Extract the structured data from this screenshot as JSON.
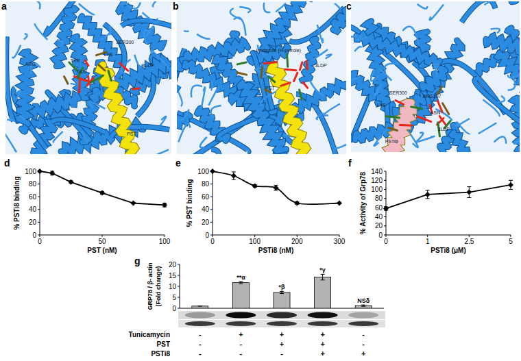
{
  "structures": [
    {
      "panel": "a",
      "labels": [
        "SER300",
        "LYS",
        "TYR",
        "GLU",
        "ARG",
        "3LDP",
        "PST"
      ]
    },
    {
      "panel": "b",
      "labels": [
        "Imidazole (H-pyrrole)",
        "PST",
        "3LDP"
      ]
    },
    {
      "panel": "c",
      "labels": [
        "SER300",
        "ARG307",
        "LYS",
        "ASN",
        "3LDP",
        "PSTi8"
      ]
    }
  ],
  "chart_data": [
    {
      "type": "line",
      "title": "d",
      "x": [
        0,
        10,
        25,
        50,
        75,
        100
      ],
      "values": [
        100,
        97,
        83,
        66,
        50,
        47
      ],
      "errors": [
        0,
        3,
        2,
        2,
        1,
        3
      ],
      "color": "#000000",
      "marker": "diamond",
      "line_style": "solid",
      "xlabel": "PST (nM)",
      "ylabel": "% PSTi8 binding",
      "xlim": [
        0,
        100
      ],
      "xticks": [
        0,
        50,
        100
      ],
      "ylim": [
        0,
        100
      ],
      "yticks": [
        0,
        20,
        40,
        60,
        80,
        100
      ]
    },
    {
      "type": "line",
      "title": "e",
      "x": [
        0,
        50,
        100,
        150,
        200,
        300
      ],
      "values": [
        100,
        93,
        77,
        74,
        50,
        50
      ],
      "errors": [
        0,
        6,
        2,
        4,
        2,
        1
      ],
      "color": "#000000",
      "marker": "diamond",
      "line_style": "smooth",
      "xlabel": "PSTi8 (nM)",
      "ylabel": "% PST binding",
      "xlim": [
        0,
        300
      ],
      "xticks": [
        0,
        100,
        200,
        300
      ],
      "ylim": [
        0,
        100
      ],
      "yticks": [
        0,
        20,
        40,
        60,
        80,
        100
      ]
    },
    {
      "type": "line",
      "title": "f",
      "categories": [
        "0",
        "1",
        "2.5",
        "5"
      ],
      "values": [
        58,
        89,
        94,
        110
      ],
      "errors": [
        4,
        9,
        12,
        10
      ],
      "color": "#000000",
      "marker": "diamond",
      "line_style": "solid",
      "xlabel": "PSTi8 (μM)",
      "ylabel": "% Activity of Grp78",
      "ylim": [
        0,
        140
      ],
      "yticks": [
        0,
        20,
        40,
        60,
        80,
        100,
        120,
        140
      ]
    },
    {
      "type": "bar",
      "title": "g",
      "categories": [
        null,
        null,
        null,
        null,
        null
      ],
      "values": [
        1,
        11.7,
        7.2,
        14.2,
        1.2
      ],
      "errors": [
        0,
        0.5,
        0.5,
        1.3,
        0.3
      ],
      "annotations": [
        null,
        "**α",
        "*β",
        "*γ",
        "NSδ"
      ],
      "color": "#b3b3b3",
      "ylabel": [
        "GRP78 / β- actin",
        "(Fold change)"
      ],
      "ylim": [
        0,
        20
      ],
      "yticks": [
        0,
        5,
        10,
        15,
        20
      ],
      "conditions": [
        {
          "label": "Tunicamycin",
          "values": [
            "-",
            "+",
            "+",
            "+",
            "-"
          ]
        },
        {
          "label": "PST",
          "values": [
            "-",
            "-",
            "+",
            "+",
            "-"
          ]
        },
        {
          "label": "PSTi8",
          "values": [
            "-",
            "-",
            "-",
            "+",
            "+"
          ]
        }
      ]
    }
  ]
}
